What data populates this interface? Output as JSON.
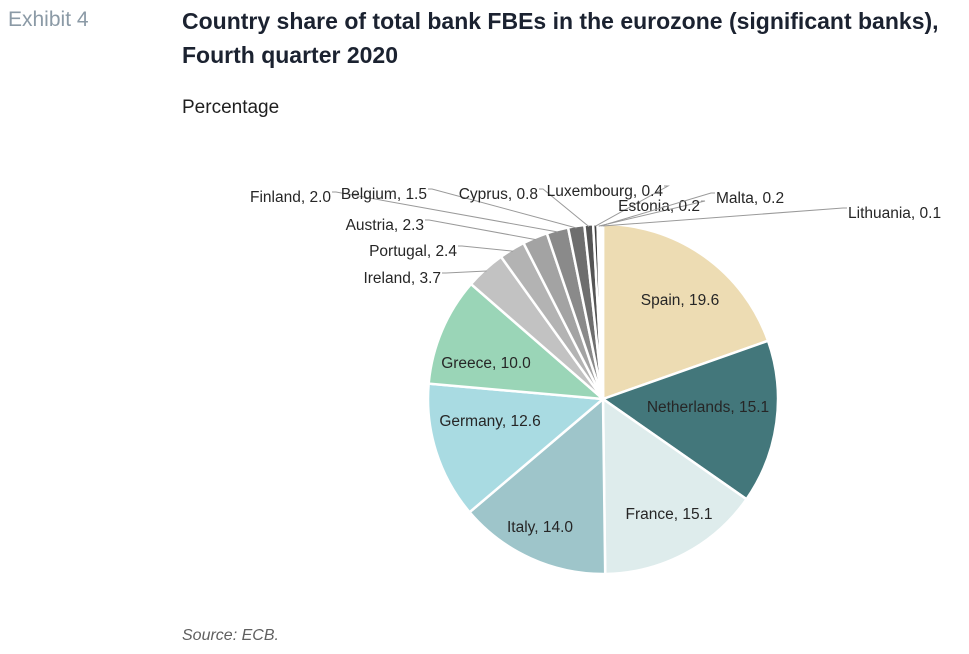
{
  "exhibit_label": "Exhibit 4",
  "title": "Country share of total bank FBEs in the eurozone (significant banks), Fourth quarter 2020",
  "subtitle": "Percentage",
  "source": "Source: ECB.",
  "chart_data": {
    "type": "pie",
    "title": "Country share of total bank FBEs in the eurozone (significant banks), Fourth quarter 2020",
    "unit": "Percentage",
    "start": "12 o'clock, clockwise",
    "slices": [
      {
        "label": "Spain",
        "value": 19.6,
        "value_label": "19.6",
        "color": "#eddcb3"
      },
      {
        "label": "Netherlands",
        "value": 15.1,
        "value_label": "15.1",
        "color": "#43777b"
      },
      {
        "label": "France",
        "value": 15.1,
        "value_label": "15.1",
        "color": "#deecec"
      },
      {
        "label": "Italy",
        "value": 14.0,
        "value_label": "14.0",
        "color": "#9ec5ca"
      },
      {
        "label": "Germany",
        "value": 12.6,
        "value_label": "12.6",
        "color": "#a9dbe2"
      },
      {
        "label": "Greece",
        "value": 10.0,
        "value_label": "10.0",
        "color": "#9ad5b7"
      },
      {
        "label": "Ireland",
        "value": 3.7,
        "value_label": "3.7",
        "color": "#c2c2c2"
      },
      {
        "label": "Portugal",
        "value": 2.4,
        "value_label": "2.4",
        "color": "#b3b3b3"
      },
      {
        "label": "Austria",
        "value": 2.3,
        "value_label": "2.3",
        "color": "#a3a3a3"
      },
      {
        "label": "Finland",
        "value": 2.0,
        "value_label": "2.0",
        "color": "#8a8a8a"
      },
      {
        "label": "Belgium",
        "value": 1.5,
        "value_label": "1.5",
        "color": "#6e6e6e"
      },
      {
        "label": "Cyprus",
        "value": 0.8,
        "value_label": "0.8",
        "color": "#555555"
      },
      {
        "label": "Luxembourg",
        "value": 0.4,
        "value_label": "0.4",
        "color": "#404040"
      },
      {
        "label": "Estonia",
        "value": 0.2,
        "value_label": "0.2",
        "color": "#2e2e2e"
      },
      {
        "label": "Malta",
        "value": 0.2,
        "value_label": "0.2",
        "color": "#3a3a3a"
      },
      {
        "label": "Lithuania",
        "value": 0.1,
        "value_label": "0.1",
        "color": "#c8c8c8"
      }
    ]
  }
}
